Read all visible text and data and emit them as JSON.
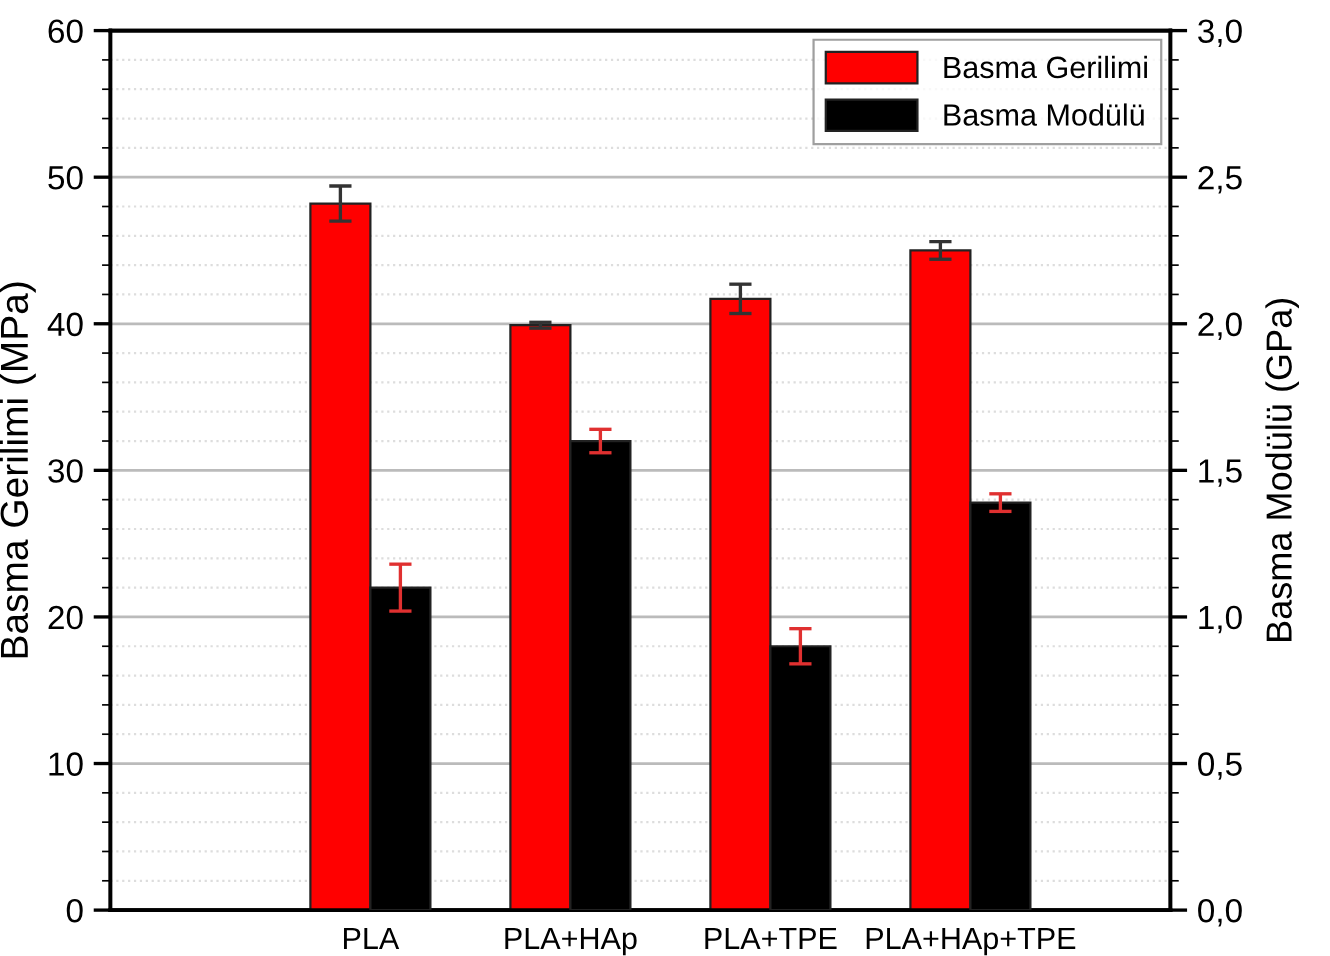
{
  "chart_data": {
    "type": "bar",
    "categories": [
      "PLA",
      "PLA+HAp",
      "PLA+TPE",
      "PLA+HAp+TPE"
    ],
    "ylabel": "Basma Gerilimi (MPa)",
    "y2label": "Basma Modülü (GPa)",
    "series": [
      {
        "name": "Basma Gerilimi",
        "color": "#ff0000",
        "values": [
          48.2,
          39.9,
          41.7,
          45.0
        ],
        "errors": [
          1.2,
          0.2,
          1.0,
          0.6
        ]
      },
      {
        "name": "Basma Modülü",
        "color": "#000000",
        "axis": "y2",
        "values": [
          1.1,
          1.6,
          0.9,
          1.39
        ],
        "errors": [
          0.08,
          0.04,
          0.06,
          0.03
        ]
      }
    ],
    "ylim": [
      0,
      60
    ],
    "yticks": [
      0,
      10,
      20,
      30,
      40,
      50,
      60
    ],
    "y2lim": [
      0,
      3.0
    ],
    "y2ticks": [
      {
        "value": 0,
        "label": "0,0"
      },
      {
        "value": 0.5,
        "label": "0,5"
      },
      {
        "value": 1.0,
        "label": "1,0"
      },
      {
        "value": 1.5,
        "label": "1,5"
      },
      {
        "value": 2.0,
        "label": "2,0"
      },
      {
        "value": 2.5,
        "label": "2,5"
      },
      {
        "value": 3.0,
        "label": "3,0"
      }
    ],
    "grid": "y",
    "legend": "top right"
  }
}
